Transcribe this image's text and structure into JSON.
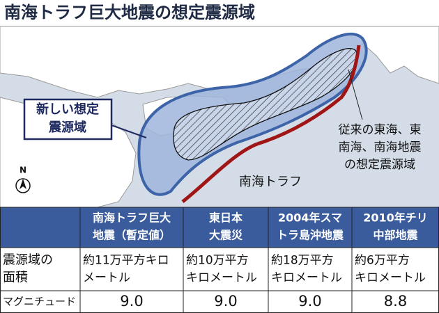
{
  "title": "南海トラフ巨大地震の想定震源域",
  "map": {
    "new_zone_label": [
      "新しい想定",
      "震源域"
    ],
    "old_zone_label": [
      "従来の東海、東",
      "南海、南海地震",
      "の想定震源域"
    ],
    "trough_label": "南海トラフ",
    "compass": "N"
  },
  "table": {
    "columns": [
      [
        "南海トラフ巨大",
        "地震（暫定値）"
      ],
      [
        "東日本",
        "大震災"
      ],
      [
        "2004年スマ",
        "トラ島沖地震"
      ],
      [
        "2010年チリ",
        "中部地震"
      ]
    ],
    "rows": [
      {
        "label": [
          "震源域の",
          "面積"
        ],
        "cells": [
          [
            "約11万平方キロ",
            "メートル"
          ],
          [
            "約10万平方",
            "キロメートル"
          ],
          [
            "約18万平方",
            "キロメートル"
          ],
          [
            "約6万平方",
            "キロメートル"
          ]
        ]
      },
      {
        "label": [
          "マグニチュード"
        ],
        "cells": [
          [
            "9.0"
          ],
          [
            "9.0"
          ],
          [
            "9.0"
          ],
          [
            "8.8"
          ]
        ]
      }
    ]
  }
}
